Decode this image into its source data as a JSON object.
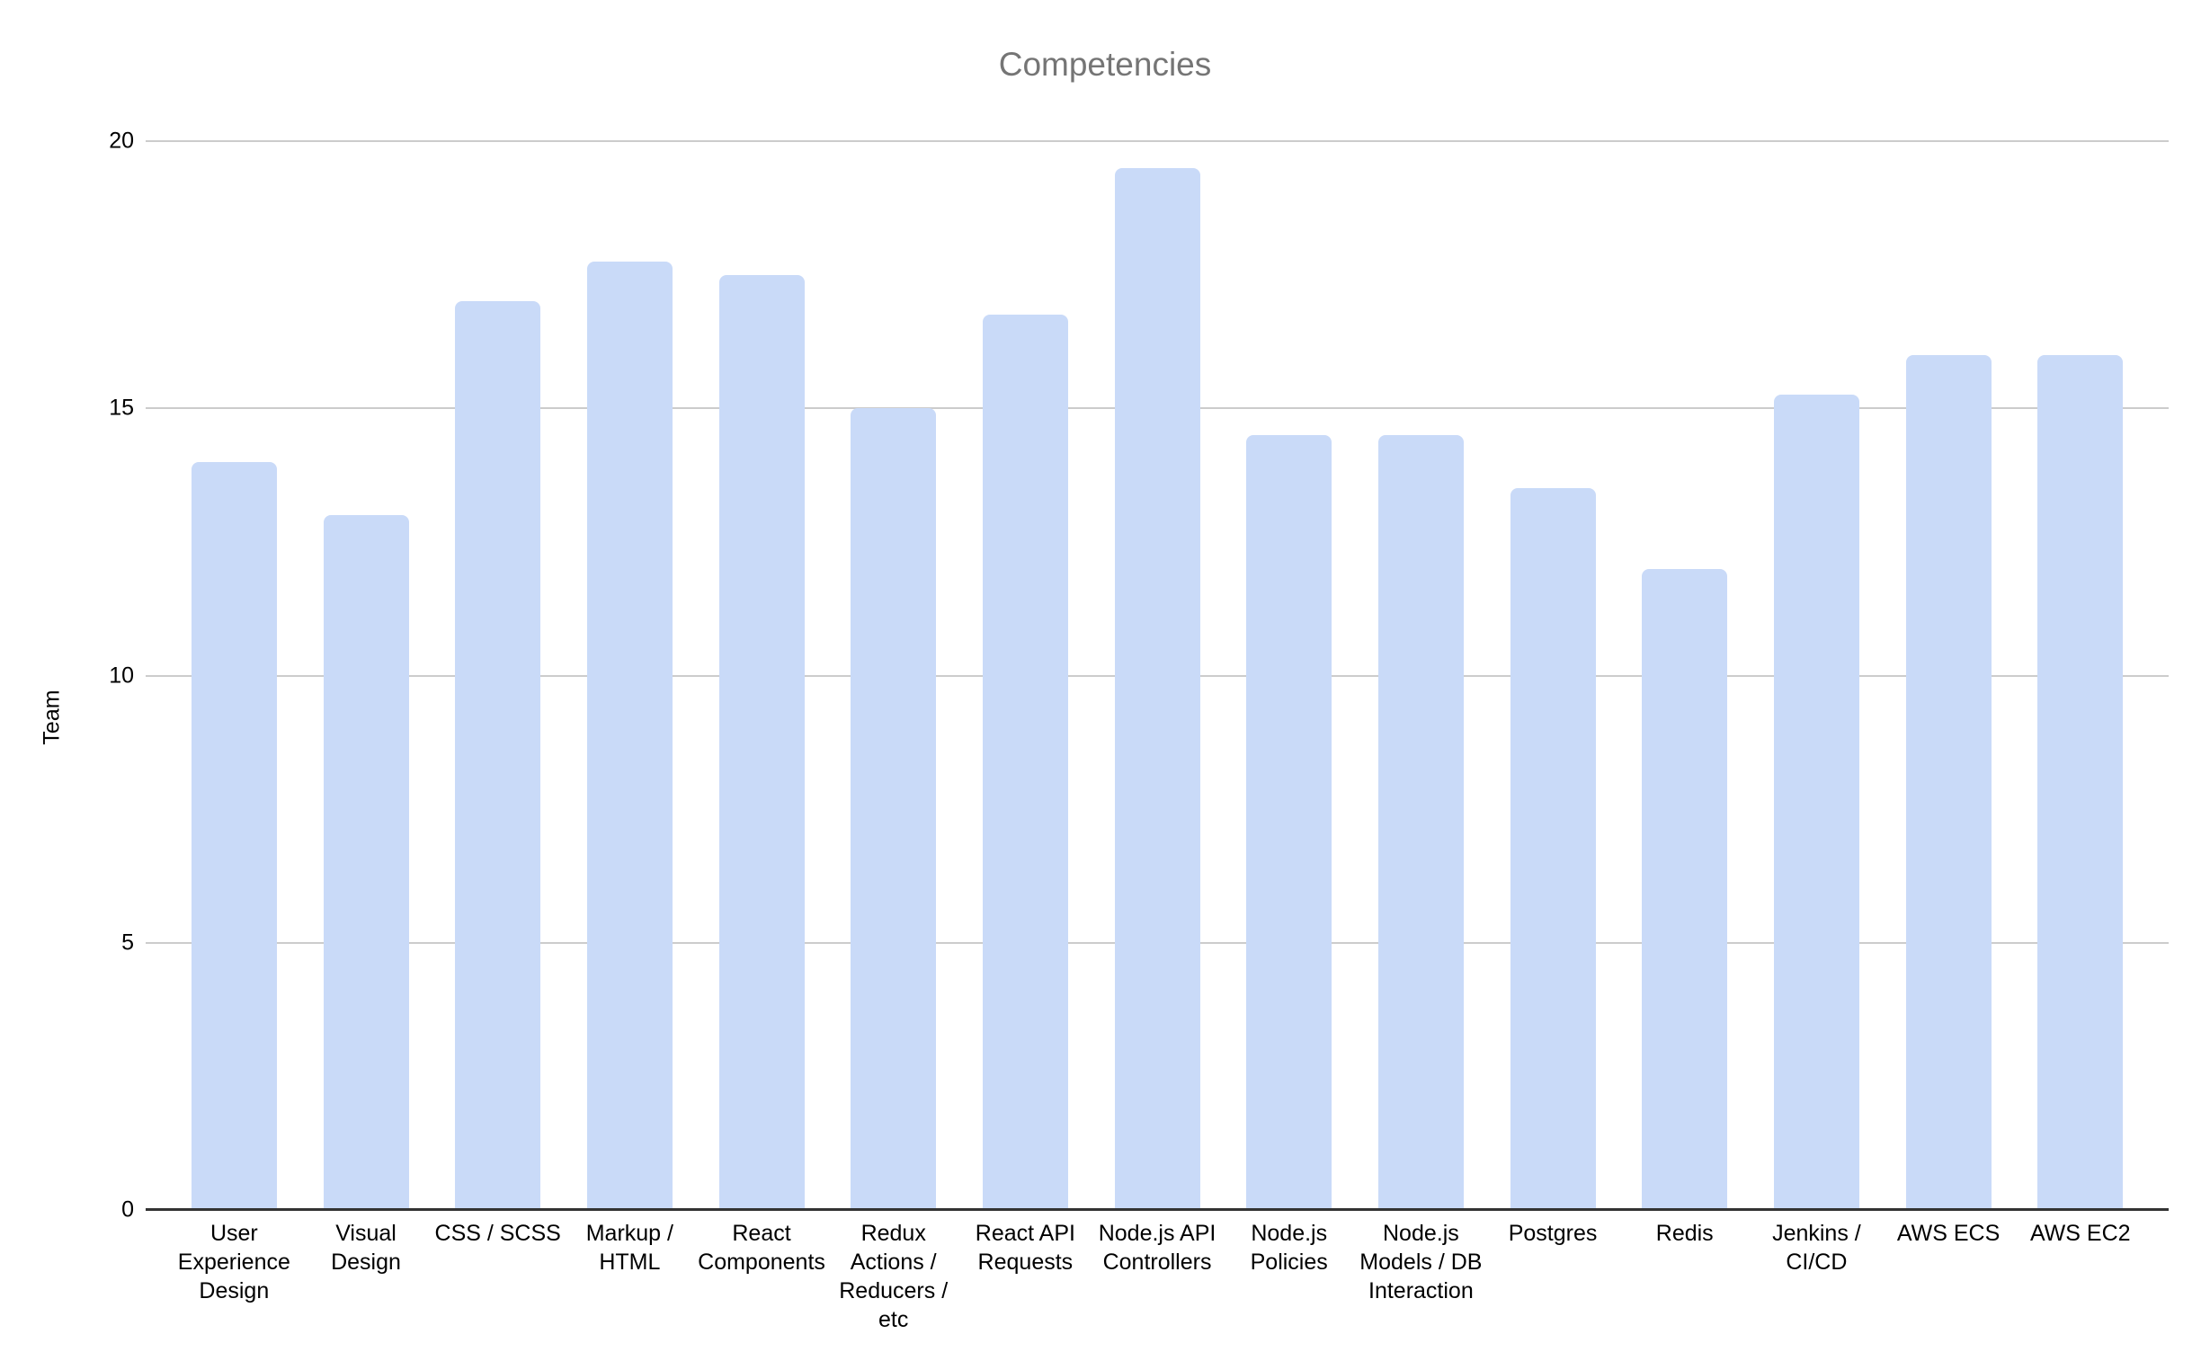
{
  "chart_data": {
    "type": "bar",
    "title": "Competencies",
    "xlabel": "",
    "ylabel": "Team",
    "ylim": [
      0,
      20
    ],
    "yticks": [
      0,
      5,
      10,
      15,
      20
    ],
    "grid": true,
    "legend": false,
    "categories": [
      "User Experience Design",
      "Visual Design",
      "CSS / SCSS",
      "Markup / HTML",
      "React Components",
      "Redux Actions / Reducers / etc",
      "React API Requests",
      "Node.js API Controllers",
      "Node.js Policies",
      "Node.js Models / DB Interaction",
      "Postgres",
      "Redis",
      "Jenkins / CI/CD",
      "AWS ECS",
      "AWS EC2"
    ],
    "values": [
      14,
      13,
      17,
      17.75,
      17.5,
      15,
      16.75,
      19.5,
      14.5,
      14.5,
      13.5,
      12,
      15.25,
      16,
      16
    ]
  },
  "colors": {
    "bar": "#c9daf8",
    "title": "#757575",
    "gridline": "#cccccc",
    "axis_line": "#333333",
    "tick_label": "#000000",
    "background": "#ffffff"
  }
}
